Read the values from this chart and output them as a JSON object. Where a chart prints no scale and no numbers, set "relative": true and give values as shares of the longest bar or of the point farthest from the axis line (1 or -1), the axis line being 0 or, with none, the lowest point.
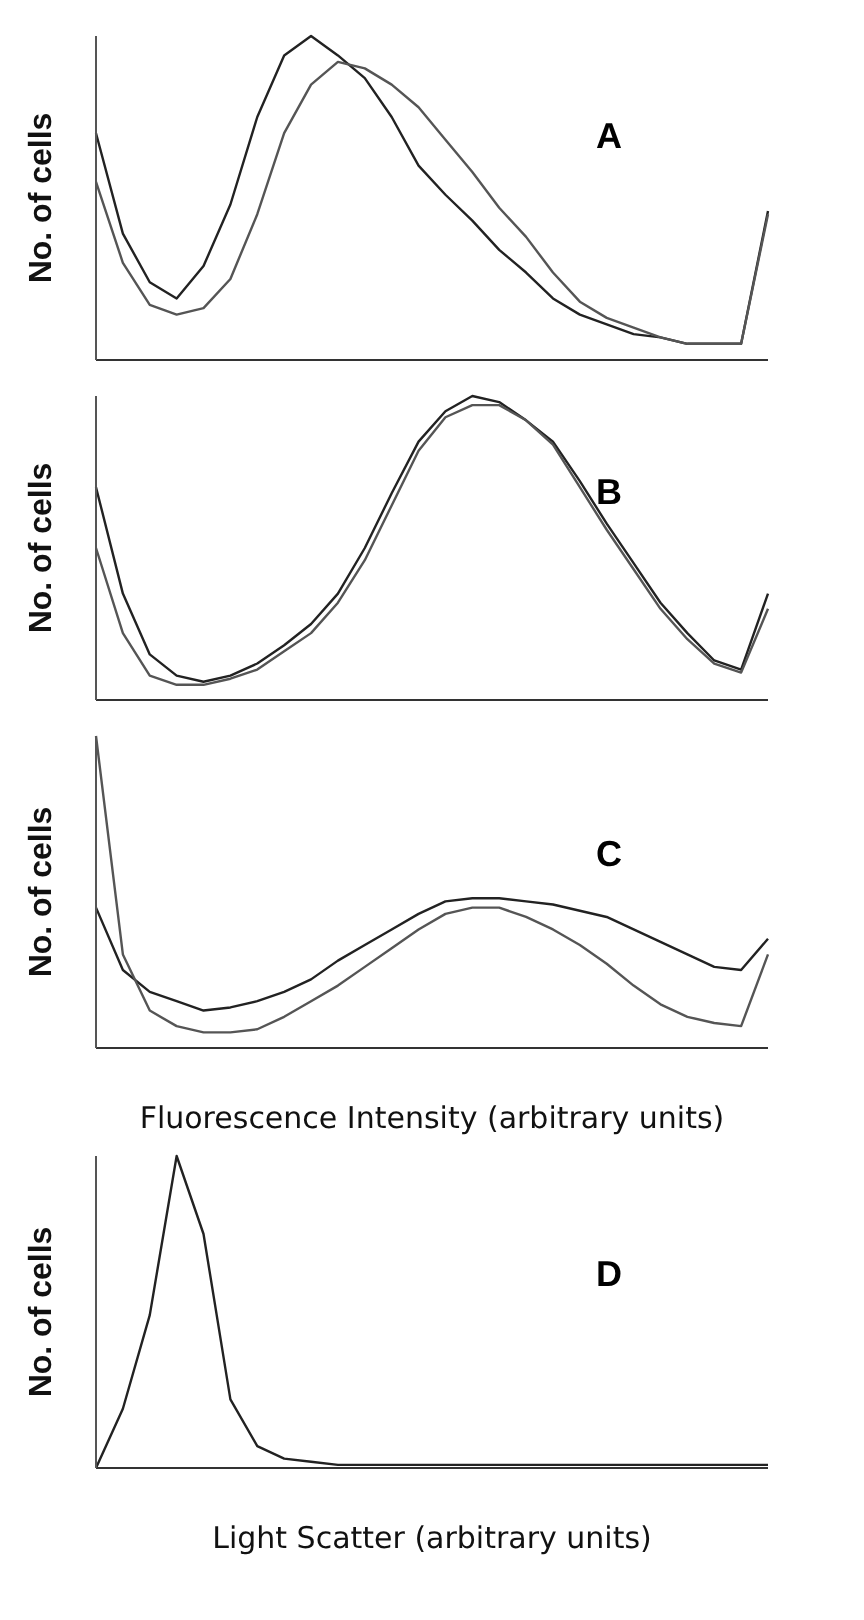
{
  "chart_data": [
    {
      "type": "line",
      "ylabel": "No. of cells",
      "annotations": [
        "A"
      ],
      "relative": true,
      "categories": [
        null,
        null,
        null,
        null,
        null,
        null,
        null,
        null,
        null,
        null,
        null,
        null,
        null,
        null,
        null,
        null,
        null,
        null,
        null,
        null,
        null,
        null,
        null,
        null,
        null,
        null
      ],
      "series": [
        {
          "color": "#222222",
          "values": [
            0.7,
            0.39,
            0.24,
            0.19,
            0.29,
            0.48,
            0.75,
            0.94,
            1.0,
            0.94,
            0.87,
            0.75,
            0.6,
            0.51,
            0.43,
            0.34,
            0.27,
            0.19,
            0.14,
            0.11,
            0.08,
            0.07,
            0.05,
            0.05,
            0.05,
            0.46
          ]
        },
        {
          "color": "#555555",
          "values": [
            0.55,
            0.3,
            0.17,
            0.14,
            0.16,
            0.25,
            0.45,
            0.7,
            0.85,
            0.92,
            0.9,
            0.85,
            0.78,
            0.68,
            0.58,
            0.47,
            0.38,
            0.27,
            0.18,
            0.13,
            0.1,
            0.07,
            0.05,
            0.05,
            0.05,
            0.45
          ]
        }
      ]
    },
    {
      "type": "line",
      "ylabel": "No. of cells",
      "annotations": [
        "B"
      ],
      "relative": true,
      "categories": [
        null,
        null,
        null,
        null,
        null,
        null,
        null,
        null,
        null,
        null,
        null,
        null,
        null,
        null,
        null,
        null,
        null,
        null,
        null,
        null,
        null,
        null,
        null,
        null,
        null,
        null
      ],
      "series": [
        {
          "color": "#222222",
          "values": [
            0.7,
            0.35,
            0.15,
            0.08,
            0.06,
            0.08,
            0.12,
            0.18,
            0.25,
            0.35,
            0.5,
            0.68,
            0.85,
            0.95,
            1.0,
            0.98,
            0.92,
            0.85,
            0.72,
            0.58,
            0.45,
            0.32,
            0.22,
            0.13,
            0.1,
            0.35
          ]
        },
        {
          "color": "#555555",
          "values": [
            0.5,
            0.22,
            0.08,
            0.05,
            0.05,
            0.07,
            0.1,
            0.16,
            0.22,
            0.32,
            0.46,
            0.64,
            0.82,
            0.93,
            0.97,
            0.97,
            0.92,
            0.84,
            0.7,
            0.56,
            0.43,
            0.3,
            0.2,
            0.12,
            0.09,
            0.3
          ]
        }
      ]
    },
    {
      "type": "line",
      "ylabel": "No. of cells",
      "xlabel": "Fluorescence Intensity (arbitrary units)",
      "annotations": [
        "C"
      ],
      "relative": true,
      "categories": [
        null,
        null,
        null,
        null,
        null,
        null,
        null,
        null,
        null,
        null,
        null,
        null,
        null,
        null,
        null,
        null,
        null,
        null,
        null,
        null,
        null,
        null,
        null,
        null,
        null,
        null
      ],
      "series": [
        {
          "color": "#222222",
          "values": [
            0.45,
            0.25,
            0.18,
            0.15,
            0.12,
            0.13,
            0.15,
            0.18,
            0.22,
            0.28,
            0.33,
            0.38,
            0.43,
            0.47,
            0.48,
            0.48,
            0.47,
            0.46,
            0.44,
            0.42,
            0.38,
            0.34,
            0.3,
            0.26,
            0.25,
            0.35
          ]
        },
        {
          "color": "#555555",
          "values": [
            1.0,
            0.3,
            0.12,
            0.07,
            0.05,
            0.05,
            0.06,
            0.1,
            0.15,
            0.2,
            0.26,
            0.32,
            0.38,
            0.43,
            0.45,
            0.45,
            0.42,
            0.38,
            0.33,
            0.27,
            0.2,
            0.14,
            0.1,
            0.08,
            0.07,
            0.3
          ]
        }
      ]
    },
    {
      "type": "line",
      "ylabel": "No. of cells",
      "xlabel": "Light Scatter (arbitrary units)",
      "annotations": [
        "D"
      ],
      "relative": true,
      "categories": [
        null,
        null,
        null,
        null,
        null,
        null,
        null,
        null,
        null,
        null,
        null,
        null,
        null,
        null,
        null,
        null,
        null,
        null,
        null,
        null,
        null,
        null,
        null,
        null,
        null,
        null
      ],
      "series": [
        {
          "color": "#222222",
          "values": [
            0.0,
            0.19,
            0.49,
            1.0,
            0.75,
            0.22,
            0.07,
            0.03,
            0.02,
            0.01,
            0.01,
            0.01,
            0.01,
            0.01,
            0.01,
            0.01,
            0.01,
            0.01,
            0.01,
            0.01,
            0.01,
            0.01,
            0.01,
            0.01,
            0.01,
            0.01
          ]
        }
      ]
    }
  ]
}
